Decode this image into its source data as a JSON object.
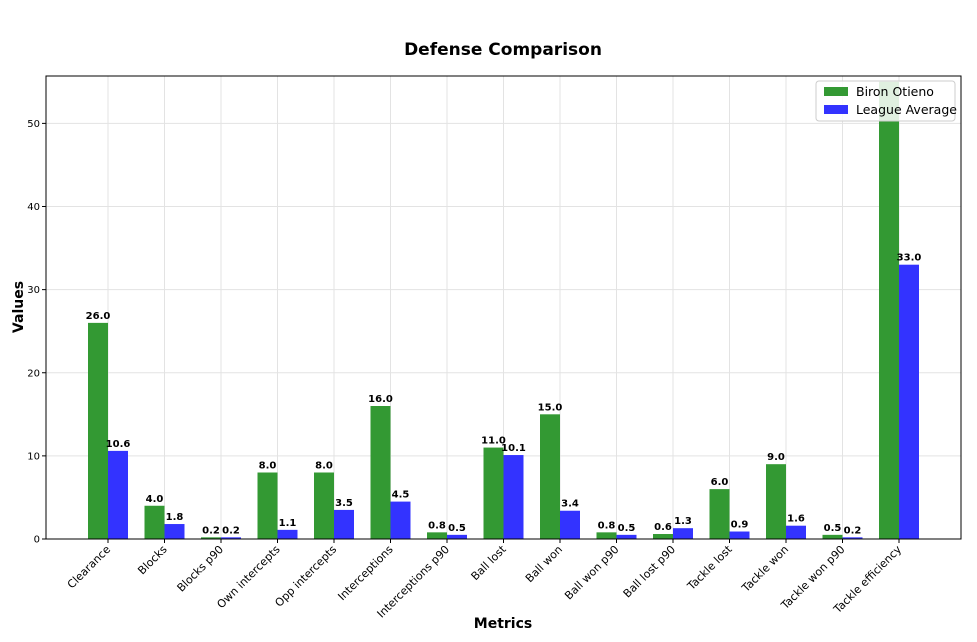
{
  "chart_data": {
    "type": "bar",
    "title": "Defense Comparison",
    "xlabel": "Metrics",
    "ylabel": "Values",
    "ylim": [
      0,
      55.7
    ],
    "yticks": [
      0,
      10,
      20,
      30,
      40,
      50
    ],
    "grid": true,
    "legend_position": "top-right",
    "categories": [
      "Clearance",
      "Blocks",
      "Blocks p90",
      "Own intercepts",
      "Opp intercepts",
      "Interceptions",
      "Interceptions p90",
      "Ball lost",
      "Ball won",
      "Ball won p90",
      "Ball lost p90",
      "Tackle lost",
      "Tackle won",
      "Tackle won p90",
      "Tackle efficiency"
    ],
    "series": [
      {
        "name": "Biron Otieno",
        "color": "#339933",
        "values": [
          26.0,
          4.0,
          0.2,
          8.0,
          8.0,
          16.0,
          0.8,
          11.0,
          15.0,
          0.8,
          0.6,
          6.0,
          9.0,
          0.5,
          55.0
        ],
        "labels": [
          "26.0",
          "4.0",
          "0.2",
          "8.0",
          "8.0",
          "16.0",
          "0.8",
          "11.0",
          "15.0",
          "0.8",
          "0.6",
          "6.0",
          "9.0",
          "0.5",
          ""
        ]
      },
      {
        "name": "League Average",
        "color": "#3333ff",
        "values": [
          10.6,
          1.8,
          0.2,
          1.1,
          3.5,
          4.5,
          0.5,
          10.1,
          3.4,
          0.5,
          1.3,
          0.9,
          1.6,
          0.2,
          33.0
        ],
        "labels": [
          "10.6",
          "1.8",
          "0.2",
          "1.1",
          "3.5",
          "4.5",
          "0.5",
          "10.1",
          "3.4",
          "0.5",
          "1.3",
          "0.9",
          "1.6",
          "0.2",
          "33.0"
        ]
      }
    ]
  }
}
